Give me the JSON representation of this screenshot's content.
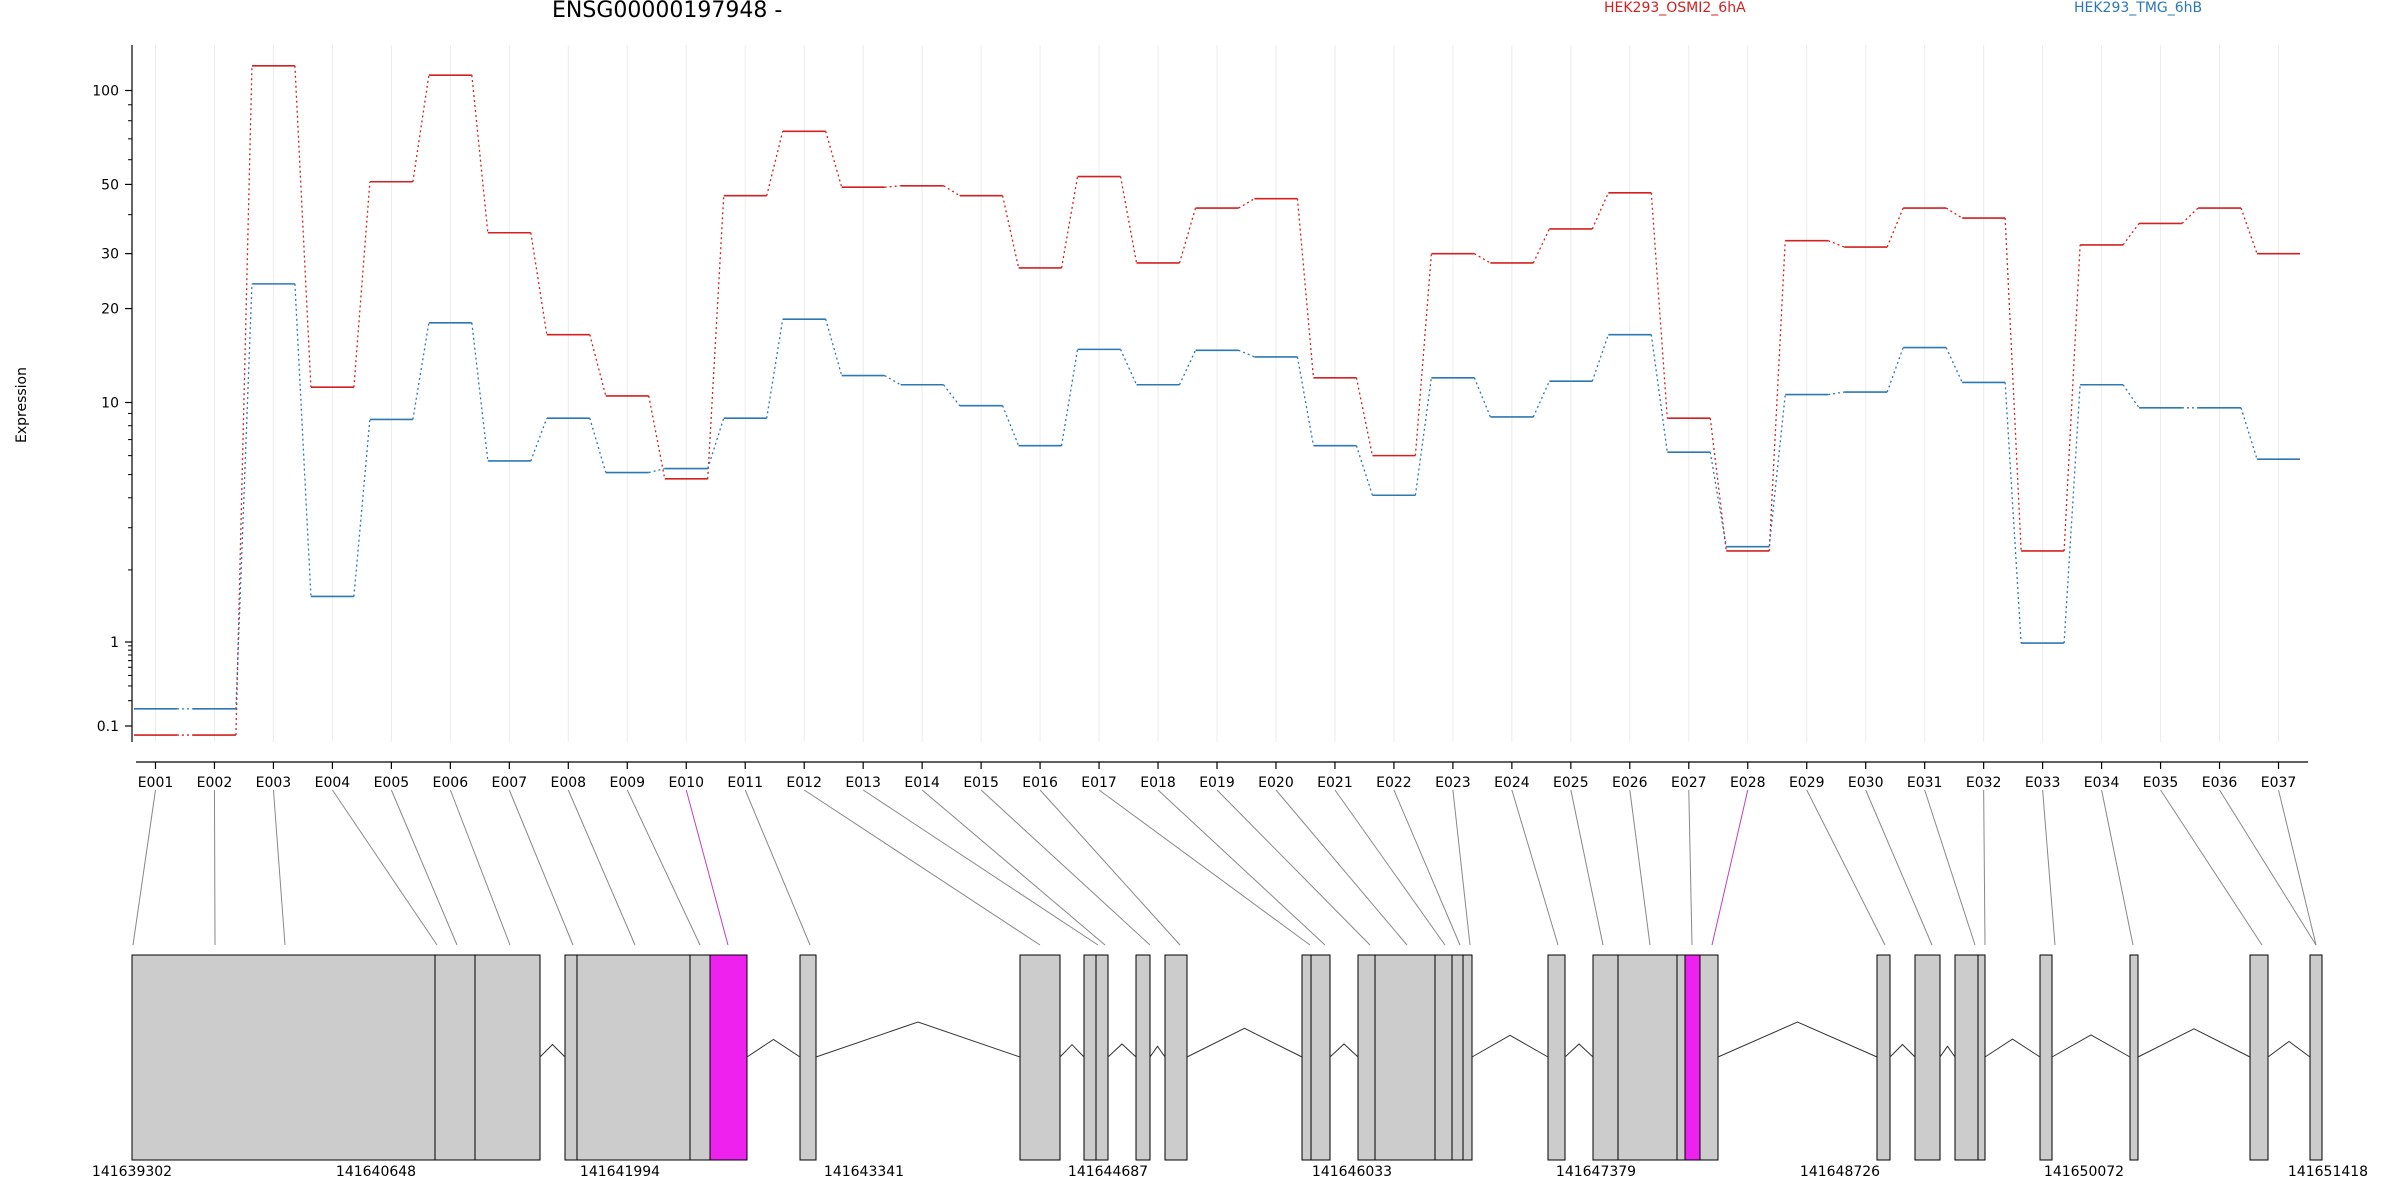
{
  "chart_data": {
    "type": "line",
    "title": "ENSG00000197948 -",
    "xlabel": "",
    "ylabel": "Expression",
    "yscale": "log",
    "ylim": [
      0.075,
      150
    ],
    "yticks": [
      0.1,
      1,
      10,
      20,
      30,
      50,
      100
    ],
    "yticklabels": [
      "0.1",
      "1",
      "10",
      "20",
      "30",
      "50",
      "100"
    ],
    "categories": [
      "E001",
      "E002",
      "E003",
      "E004",
      "E005",
      "E006",
      "E007",
      "E008",
      "E009",
      "E010",
      "E011",
      "E012",
      "E013",
      "E014",
      "E015",
      "E016",
      "E017",
      "E018",
      "E019",
      "E020",
      "E021",
      "E022",
      "E023",
      "E024",
      "E025",
      "E026",
      "E027",
      "E028",
      "E029",
      "E030",
      "E031",
      "E032",
      "E033",
      "E034",
      "E035",
      "E036",
      "E037"
    ],
    "series": [
      {
        "name": "HEK293_OSMI2_6hA",
        "color": "#d42020",
        "values": [
          0.078,
          0.078,
          120,
          11.2,
          51,
          112,
          35,
          16.5,
          10.5,
          4.8,
          46,
          74,
          49,
          49.5,
          46,
          27,
          53,
          28,
          42,
          45,
          12,
          6,
          30,
          28,
          36,
          47,
          8.6,
          2.4,
          33,
          31.5,
          42,
          39,
          2.4,
          32,
          37.5,
          42,
          30
        ]
      },
      {
        "name": "HEK293_TMG_6hB",
        "color": "#2b78b5",
        "values": [
          0.16,
          0.16,
          24,
          1.55,
          8.5,
          18,
          5.7,
          8.6,
          5.1,
          5.3,
          8.6,
          18.5,
          12.2,
          11.4,
          9.7,
          6.6,
          14.8,
          11.4,
          14.7,
          14,
          6.6,
          4.1,
          12,
          8.7,
          11.7,
          16.5,
          6.2,
          2.5,
          10.6,
          10.8,
          15,
          11.6,
          0.97,
          11.4,
          9.5,
          9.5,
          5.8
        ]
      }
    ],
    "coordinates": {
      "ticks": [
        "141639302",
        "141640648",
        "141641994",
        "141643341",
        "141644687",
        "141646033",
        "141647379",
        "141648726",
        "141650072",
        "141651418"
      ]
    },
    "highlighted_exons": [
      "E010",
      "E028"
    ]
  }
}
